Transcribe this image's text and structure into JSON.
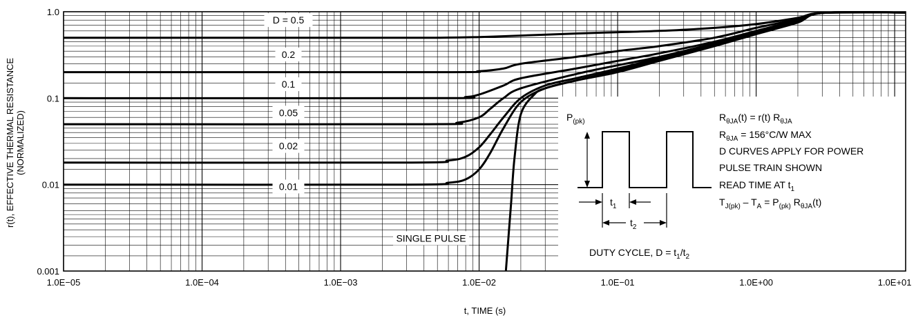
{
  "chart_data": {
    "type": "line",
    "x_scale": "log",
    "y_scale": "log",
    "xlim": [
      1e-05,
      12
    ],
    "ylim": [
      0.001,
      1.0
    ],
    "grid": true,
    "xlabel": "t, TIME (s)",
    "ylabel_line1": "r(t), EFFECTIVE THERMAL RESISTANCE",
    "ylabel_line2": "(NORMALIZED)",
    "x_ticks": [
      {
        "value": 1e-05,
        "label": "1.0E−05"
      },
      {
        "value": 0.0001,
        "label": "1.0E−04"
      },
      {
        "value": 0.001,
        "label": "1.0E−03"
      },
      {
        "value": 0.01,
        "label": "1.0E−02"
      },
      {
        "value": 0.1,
        "label": "1.0E−01"
      },
      {
        "value": 1,
        "label": "1.0E+00"
      },
      {
        "value": 10,
        "label": "1.0E+01"
      }
    ],
    "y_ticks": [
      {
        "value": 0.001,
        "label": "0.001"
      },
      {
        "value": 0.01,
        "label": "0.01"
      },
      {
        "value": 0.1,
        "label": "0.1"
      },
      {
        "value": 1,
        "label": "1.0"
      }
    ],
    "series": [
      {
        "name": "D = 0.5",
        "label_at": [
          0.00042,
          0.8
        ],
        "x": [
          1e-05,
          0.001,
          0.005,
          0.01,
          0.02,
          0.05,
          0.1,
          0.2,
          0.5,
          1,
          2,
          3,
          12
        ],
        "y": [
          0.5,
          0.5,
          0.5,
          0.51,
          0.53,
          0.56,
          0.58,
          0.6,
          0.65,
          0.72,
          0.85,
          0.97,
          0.98
        ]
      },
      {
        "name": "0.2",
        "label_at": [
          0.00042,
          0.32
        ],
        "x": [
          1e-05,
          0.005,
          0.01,
          0.015,
          0.02,
          0.05,
          0.1,
          0.2,
          0.5,
          1,
          2,
          3,
          12
        ],
        "y": [
          0.2,
          0.2,
          0.205,
          0.22,
          0.25,
          0.3,
          0.35,
          0.4,
          0.5,
          0.65,
          0.82,
          0.97,
          0.98
        ]
      },
      {
        "name": "0.1",
        "label_at": [
          0.00042,
          0.145
        ],
        "x": [
          1e-05,
          0.005,
          0.008,
          0.01,
          0.015,
          0.02,
          0.05,
          0.1,
          0.2,
          0.5,
          1,
          2,
          3,
          12
        ],
        "y": [
          0.1,
          0.1,
          0.103,
          0.11,
          0.14,
          0.17,
          0.22,
          0.27,
          0.33,
          0.45,
          0.6,
          0.8,
          0.97,
          0.98
        ]
      },
      {
        "name": "0.05",
        "label_at": [
          0.00042,
          0.068
        ],
        "x": [
          1e-05,
          0.004,
          0.007,
          0.01,
          0.012,
          0.015,
          0.02,
          0.05,
          0.1,
          0.2,
          0.5,
          1,
          2,
          3,
          12
        ],
        "y": [
          0.05,
          0.05,
          0.052,
          0.06,
          0.075,
          0.1,
          0.13,
          0.19,
          0.24,
          0.3,
          0.43,
          0.58,
          0.78,
          0.97,
          0.98
        ]
      },
      {
        "name": "0.02",
        "label_at": [
          0.00042,
          0.028
        ],
        "x": [
          1e-05,
          0.003,
          0.006,
          0.008,
          0.01,
          0.012,
          0.015,
          0.02,
          0.03,
          0.05,
          0.1,
          0.2,
          0.5,
          1,
          2,
          3,
          12
        ],
        "y": [
          0.018,
          0.018,
          0.019,
          0.021,
          0.027,
          0.038,
          0.06,
          0.1,
          0.14,
          0.17,
          0.22,
          0.29,
          0.42,
          0.57,
          0.77,
          0.97,
          0.98
        ]
      },
      {
        "name": "0.01",
        "label_at": [
          0.00042,
          0.0095
        ],
        "x": [
          1e-05,
          0.003,
          0.006,
          0.008,
          0.01,
          0.012,
          0.015,
          0.02,
          0.03,
          0.05,
          0.1,
          0.2,
          0.5,
          1,
          2,
          3,
          12
        ],
        "y": [
          0.01,
          0.01,
          0.0105,
          0.0115,
          0.015,
          0.023,
          0.045,
          0.09,
          0.13,
          0.16,
          0.21,
          0.28,
          0.41,
          0.56,
          0.76,
          0.97,
          0.98
        ]
      },
      {
        "name": "SINGLE PULSE",
        "label_at": [
          0.0045,
          0.0024
        ],
        "x": [
          0.0156,
          0.017,
          0.018,
          0.02,
          0.025,
          0.03,
          0.05,
          0.1,
          0.2,
          0.5,
          1,
          2,
          3,
          12
        ],
        "y": [
          0.001,
          0.006,
          0.02,
          0.065,
          0.11,
          0.13,
          0.16,
          0.2,
          0.27,
          0.4,
          0.55,
          0.75,
          0.97,
          0.98
        ]
      }
    ]
  },
  "inset": {
    "ppk_main": "P",
    "ppk_sub": "(pk)",
    "t1_main": "t",
    "t1_sub": "1",
    "t2_main": "t",
    "t2_sub": "2",
    "duty_prefix": "DUTY CYCLE, D = t",
    "duty_sub1": "1",
    "duty_mid": "/t",
    "duty_sub2": "2",
    "eq1_a": "R",
    "eq1_b": "θJA",
    "eq1_c": "(t) = r(t) R",
    "eq1_d": "θJA",
    "eq2_a": "R",
    "eq2_b": "θJA",
    "eq2_c": " = 156°C/W MAX",
    "line3": "D CURVES APPLY FOR POWER",
    "line4": "PULSE TRAIN SHOWN",
    "line5_a": "READ TIME AT t",
    "line5_b": "1",
    "eq6_a": "T",
    "eq6_b": "J(pk)",
    "eq6_c": " – T",
    "eq6_d": "A",
    "eq6_e": " = P",
    "eq6_f": "(pk)",
    "eq6_g": " R",
    "eq6_h": "θJA",
    "eq6_i": "(t)"
  }
}
